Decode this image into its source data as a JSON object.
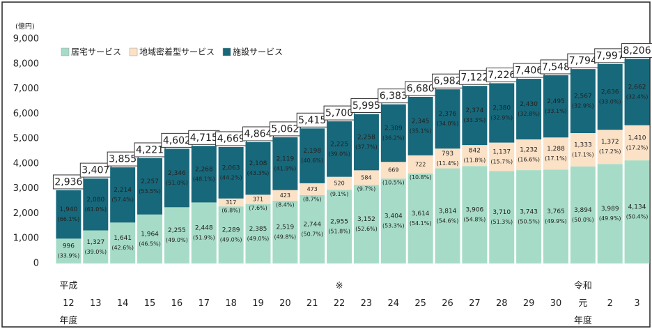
{
  "chart_data": {
    "type": "stacked-bar",
    "y_unit_label": "(億円)",
    "legend": "top-left",
    "grid": false,
    "ylim": [
      0,
      9000
    ],
    "yticks": [
      0,
      {
        "value": 1000,
        "label": "1,000"
      },
      {
        "value": 2000,
        "label": "2,000"
      },
      {
        "value": 3000,
        "label": "3,000"
      },
      {
        "value": 4000,
        "label": "4,000"
      },
      {
        "value": 5000,
        "label": "5,000"
      },
      {
        "value": 6000,
        "label": "6,000"
      },
      {
        "value": 7000,
        "label": "7,000"
      },
      {
        "value": 8000,
        "label": "8,000"
      },
      {
        "value": 9000,
        "label": "9,000"
      }
    ],
    "categories": [
      "平成\n12\n年度",
      "13",
      "14",
      "15",
      "16",
      "17",
      "18",
      "19",
      "20",
      "21",
      "※\n22",
      "23",
      "24",
      "25",
      "26",
      "27",
      "28",
      "29",
      "30",
      "令和\n元\n年度",
      "2",
      "3"
    ],
    "series": [
      {
        "name": "居宅サービス",
        "color": "#a6dcc7",
        "text_color": "#222",
        "values": [
          996,
          1327,
          1641,
          1964,
          2255,
          2448,
          2289,
          2385,
          2519,
          2744,
          2955,
          3152,
          3404,
          3614,
          3814,
          3906,
          3710,
          3743,
          3765,
          3894,
          3989,
          4134
        ],
        "value_labels": [
          "996",
          "1,327",
          "1,641",
          "1,964",
          "2,255",
          "2,448",
          "2,289",
          "2,385",
          "2,519",
          "2,744",
          "2,955",
          "3,152",
          "3,404",
          "3,614",
          "3,814",
          "3,906",
          "3,710",
          "3,743",
          "3,765",
          "3,894",
          "3,989",
          "4,134"
        ],
        "percent_labels": [
          "(33.9%)",
          "(39.0%)",
          "(42.6%)",
          "(46.5%)",
          "(49.0%)",
          "(51.9%)",
          "(49.0%)",
          "(49.0%)",
          "(49.8%)",
          "(50.7%)",
          "(51.8%)",
          "(52.6%)",
          "(53.3%)",
          "(54.1%)",
          "(54.6%)",
          "(54.8%)",
          "(51.3%)",
          "(50.5%)",
          "(49.9%)",
          "(50.0%)",
          "(49.9%)",
          "(50.4%)"
        ]
      },
      {
        "name": "地域密着型サービス",
        "color": "#fbe1c6",
        "text_color": "#222",
        "values": [
          null,
          null,
          null,
          null,
          null,
          null,
          317,
          371,
          423,
          473,
          520,
          584,
          669,
          722,
          793,
          842,
          1137,
          1232,
          1288,
          1333,
          1372,
          1410
        ],
        "value_labels": [
          null,
          null,
          null,
          null,
          null,
          null,
          "317",
          "371",
          "423",
          "473",
          "520",
          "584",
          "669",
          "722",
          "793",
          "842",
          "1,137",
          "1,232",
          "1,288",
          "1,333",
          "1,372",
          "1,410"
        ],
        "percent_labels": [
          null,
          null,
          null,
          null,
          null,
          null,
          "(6.8%)",
          "(7.6%)",
          "(8.4%)",
          "(8.7%)",
          "(9.1%)",
          "(9.7%)",
          "(10.5%)",
          "(10.8%)",
          "(11.4%)",
          "(11.8%)",
          "(15.7%)",
          "(16.6%)",
          "(17.1%)",
          "(17.1%)",
          "(17.2%)",
          "(17.2%)"
        ]
      },
      {
        "name": "施設サービス",
        "color": "#17687b",
        "text_color": "#fff",
        "values": [
          1940,
          2080,
          2214,
          2257,
          2346,
          2268,
          2063,
          2108,
          2119,
          2198,
          2225,
          2258,
          2309,
          2345,
          2376,
          2374,
          2380,
          2430,
          2495,
          2567,
          2636,
          2662
        ],
        "value_labels": [
          "1,940",
          "2,080",
          "2,214",
          "2,257",
          "2,346",
          "2,268",
          "2,063",
          "2,108",
          "2,119",
          "2,198",
          "2,225",
          "2,258",
          "2,309",
          "2,345",
          "2,376",
          "2,374",
          "2,380",
          "2,430",
          "2,495",
          "2,567",
          "2,636",
          "2,662"
        ],
        "percent_labels": [
          "(66.1%)",
          "(61.0%)",
          "(57.4%)",
          "(53.5%)",
          "(51.0%)",
          "(48.1%)",
          "(44.2%)",
          "(43.3%)",
          "(41.9%)",
          "(40.6%)",
          "(39.0%)",
          "(37.7%)",
          "(36.2%)",
          "(35.1%)",
          "(34.0%)",
          "(33.3%)",
          "(32.9%)",
          "(32.8%)",
          "(33.1%)",
          "(32.9%)",
          "(33.0%)",
          "(32.4%)"
        ]
      }
    ],
    "totals": [
      2936,
      3407,
      3855,
      4221,
      4602,
      4715,
      4669,
      4864,
      5062,
      5415,
      5700,
      5995,
      6383,
      6680,
      6982,
      7122,
      7226,
      7406,
      7548,
      7794,
      7997,
      8206
    ],
    "total_labels": [
      "2,936",
      "3,407",
      "3,855",
      "4,221",
      "4,602",
      "4,715",
      "4,669",
      "4,864",
      "5,062",
      "5,415",
      "5,700",
      "5,995",
      "6,383",
      "6,680",
      "6,982",
      "7,122",
      "7,226",
      "7,406",
      "7,548",
      "7,794",
      "7,997",
      "8,206"
    ]
  }
}
